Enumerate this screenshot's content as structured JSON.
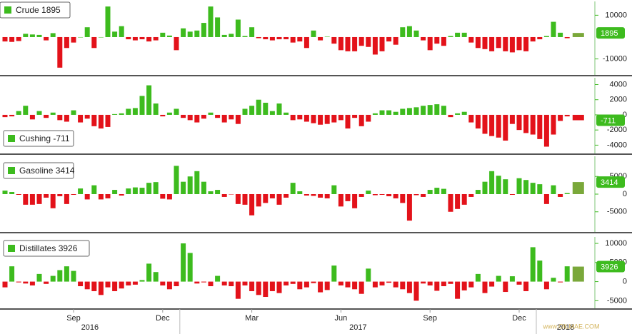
{
  "chart_data": [
    {
      "type": "bar",
      "name": "Crude",
      "up_color": "#3dbb1e",
      "down_color": "#e3121a",
      "latest_color": "#7aa83a",
      "ylim": [
        -17000,
        16000
      ],
      "yticks": [
        10000,
        -10000
      ],
      "values": [
        -2000,
        -2200,
        -1800,
        1500,
        1200,
        1000,
        -1500,
        1800,
        -14000,
        -5000,
        -2500,
        0,
        4500,
        -5000,
        0,
        14000,
        2500,
        5000,
        -1000,
        -1500,
        -1000,
        -2000,
        -1500,
        2000,
        700,
        -6000,
        4000,
        2500,
        3000,
        6500,
        14000,
        9000,
        1000,
        1500,
        8000,
        500,
        4500,
        -500,
        -1000,
        -1500,
        -1000,
        -1000,
        -2500,
        -2000,
        -5000,
        3000,
        -1500,
        200,
        -3000,
        -6000,
        -6500,
        -6500,
        -4000,
        -4500,
        -8000,
        -6500,
        -2000,
        -3500,
        4500,
        5000,
        3000,
        -1500,
        -6000,
        -3000,
        -4000,
        500,
        2000,
        2000,
        -2500,
        -5000,
        -5500,
        -6500,
        -5000,
        -6500,
        -7000,
        -6000,
        -6500,
        -2000,
        -1000,
        500,
        7000,
        2000,
        -500,
        1895
      ]
    },
    {
      "type": "bar",
      "name": "Cushing",
      "up_color": "#3dbb1e",
      "down_color": "#e3121a",
      "latest_color": "#e3121a",
      "ylim": [
        -5000,
        4800
      ],
      "yticks": [
        4000,
        2000,
        0,
        -2000,
        -4000
      ],
      "values": [
        -300,
        -200,
        500,
        1200,
        -600,
        500,
        -400,
        300,
        -700,
        -900,
        600,
        -1000,
        -500,
        -1500,
        -1800,
        -1600,
        100,
        200,
        800,
        900,
        2500,
        3900,
        1500,
        -200,
        300,
        800,
        -400,
        -700,
        -1000,
        -500,
        300,
        -400,
        -1000,
        -600,
        -1200,
        800,
        1200,
        2000,
        1600,
        500,
        1500,
        300,
        -700,
        -600,
        -900,
        -1100,
        -1300,
        -1200,
        -1000,
        -700,
        -1800,
        -400,
        -1500,
        -900,
        200,
        600,
        600,
        400,
        800,
        900,
        1000,
        1200,
        1300,
        1400,
        1200,
        -300,
        200,
        400,
        -1000,
        -1800,
        -2500,
        -2800,
        -3000,
        -3400,
        -1200,
        -2000,
        -2400,
        -2600,
        -3200,
        -4200,
        -2600,
        -800,
        -200,
        -711
      ]
    },
    {
      "type": "bar",
      "name": "Gasoline",
      "up_color": "#3dbb1e",
      "down_color": "#e3121a",
      "latest_color": "#7aa83a",
      "ylim": [
        -10500,
        10500
      ],
      "yticks": [
        5000,
        0,
        -5000
      ],
      "values": [
        1000,
        600,
        -200,
        -3000,
        -3000,
        -2800,
        -1000,
        -4000,
        -600,
        -2800,
        -200,
        1600,
        -1500,
        2500,
        -1500,
        -1200,
        1200,
        -400,
        1600,
        1900,
        1800,
        3200,
        3400,
        -1300,
        -1500,
        8000,
        3500,
        5000,
        6500,
        3500,
        800,
        1200,
        -800,
        -100,
        -2800,
        -3000,
        -6000,
        -3500,
        -2500,
        -1200,
        -3000,
        -1000,
        3200,
        800,
        -400,
        -500,
        -1000,
        -1200,
        2500,
        -3500,
        -2000,
        -4000,
        -800,
        1000,
        -300,
        -200,
        -600,
        -1200,
        -2500,
        -7500,
        -300,
        -800,
        1200,
        1800,
        1500,
        -5000,
        -4200,
        -3000,
        -800,
        1200,
        3500,
        6500,
        5200,
        4200,
        -200,
        4500,
        4000,
        3200,
        2800,
        -2800,
        2500,
        -800,
        300,
        3414
      ]
    },
    {
      "type": "bar",
      "name": "Distillates",
      "up_color": "#3dbb1e",
      "down_color": "#e3121a",
      "latest_color": "#7aa83a",
      "ylim": [
        -6800,
        11500
      ],
      "yticks": [
        10000,
        5000,
        0,
        -5000
      ],
      "values": [
        -1500,
        4000,
        -200,
        -500,
        -1000,
        2000,
        -600,
        1500,
        3000,
        4000,
        2800,
        -1200,
        -2000,
        -2500,
        -3500,
        -1500,
        -2500,
        -1800,
        -1000,
        -800,
        400,
        4700,
        2500,
        -1000,
        -2000,
        -1200,
        10000,
        7500,
        -500,
        -200,
        -1200,
        1500,
        -1000,
        -1200,
        -4500,
        -1000,
        -2500,
        -3500,
        -4000,
        -2500,
        -3000,
        -1000,
        -600,
        -2000,
        -1500,
        -400,
        -2800,
        -2200,
        4200,
        -1000,
        -1500,
        -2000,
        -3200,
        3400,
        -1500,
        -1000,
        -300,
        -1500,
        -2000,
        -3000,
        -5000,
        -500,
        -1000,
        -2400,
        -1200,
        -600,
        -4500,
        -2300,
        -1500,
        2000,
        -3000,
        -1300,
        1500,
        -2700,
        1400,
        -800,
        -2500,
        9000,
        5500,
        -2000,
        1000,
        -200,
        4000,
        3926
      ],
      "categories": [
        null,
        null,
        null,
        null,
        null,
        null,
        null,
        null,
        null,
        null,
        "Sep",
        null,
        null,
        null,
        null,
        null,
        null,
        null,
        null,
        null,
        null,
        null,
        null,
        "Dec",
        null,
        null,
        null,
        null,
        null,
        null,
        null,
        null,
        null,
        null,
        null,
        null,
        "Mar",
        null,
        null,
        null,
        null,
        null,
        null,
        null,
        null,
        null,
        null,
        null,
        null,
        "Jun",
        null,
        null,
        null,
        null,
        null,
        null,
        null,
        null,
        null,
        null,
        null,
        null,
        "Sep",
        null,
        null,
        null,
        null,
        null,
        null,
        null,
        null,
        null,
        null,
        null,
        null,
        "Dec",
        null,
        null,
        null,
        null,
        null,
        null,
        null,
        null
      ],
      "years": [
        "2016",
        "2017",
        "2018"
      ]
    }
  ],
  "watermark": "www.OILMAE.COM"
}
